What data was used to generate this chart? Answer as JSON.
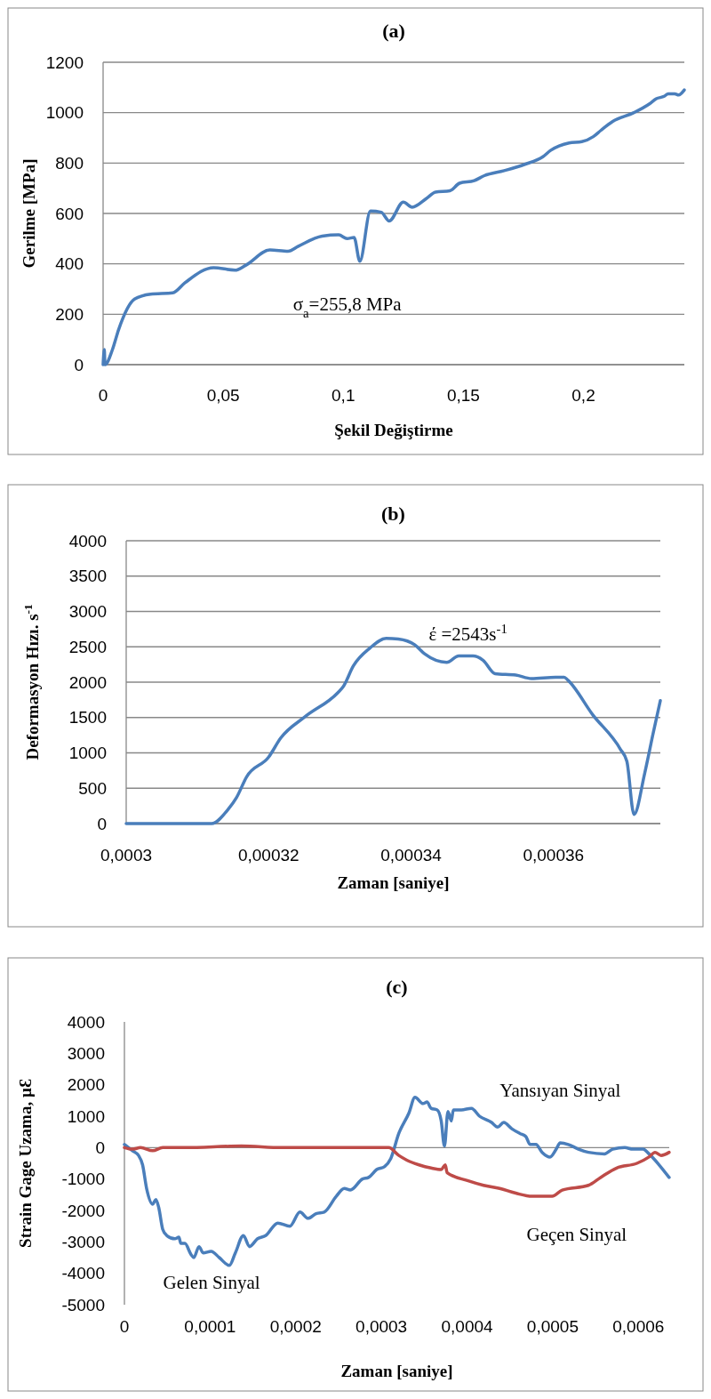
{
  "chart_data": [
    {
      "type": "line",
      "title": "(a)",
      "xlabel": "Şekil Değiştirme",
      "ylabel": "Gerilme  [MPa]",
      "xlim": [
        0,
        0.242
      ],
      "xticks": [
        0,
        {
          "value": 0.05,
          "label": "0,05"
        },
        {
          "value": 0.1,
          "label": "0,1"
        },
        {
          "value": 0.15,
          "label": "0,15"
        },
        {
          "value": 0.2,
          "label": "0,2"
        }
      ],
      "ylim": [
        0,
        1200
      ],
      "yticks": [
        0,
        200,
        400,
        600,
        800,
        1000,
        1200
      ],
      "grid": "y",
      "annotations": [
        "σ$_{a}$=255,8 MPa"
      ],
      "series": [
        {
          "color": "#4a7ebb",
          "x": [
            0,
            0.0005,
            0.0008,
            0.0039,
            0.0065,
            0.0131,
            0.0198,
            0.029,
            0.0341,
            0.046,
            0.0549,
            0.0595,
            0.0694,
            0.077,
            0.0813,
            0.0912,
            0.0981,
            0.1016,
            0.1045,
            0.1069,
            0.1113,
            0.1158,
            0.1191,
            0.125,
            0.1287,
            0.1347,
            0.1384,
            0.1444,
            0.1484,
            0.1545,
            0.1587,
            0.167,
            0.1756,
            0.1831,
            0.1863,
            0.194,
            0.1993,
            0.2041,
            0.2073,
            0.2122,
            0.221,
            0.2275,
            0.2303,
            0.2336,
            0.2353,
            0.238,
            0.2396,
            0.242
          ],
          "values": [
            0,
            60,
            0,
            60,
            140,
            260,
            280,
            285,
            325,
            385,
            375,
            395,
            455,
            450,
            470,
            510,
            515,
            500,
            505,
            410,
            610,
            605,
            570,
            645,
            625,
            660,
            685,
            690,
            720,
            730,
            750,
            770,
            795,
            825,
            850,
            880,
            885,
            905,
            930,
            965,
            1000,
            1035,
            1055,
            1065,
            1075,
            1075,
            1070,
            1090
          ]
        }
      ]
    },
    {
      "type": "line",
      "title": "(b)",
      "xlabel": "Zaman [saniye]",
      "ylabel": "Deformasyon Hızı.  s$^{-1}$",
      "xlim": [
        0.0003,
        0.000375
      ],
      "xticks": [
        {
          "value": 0.0003,
          "label": "0,0003"
        },
        {
          "value": 0.00032,
          "label": "0,00032"
        },
        {
          "value": 0.00034,
          "label": "0,00034"
        },
        {
          "value": 0.00036,
          "label": "0,00036"
        }
      ],
      "ylim": [
        0,
        4000
      ],
      "yticks": [
        0,
        500,
        1000,
        1500,
        2000,
        2500,
        3000,
        3500,
        4000
      ],
      "grid": "y",
      "annotations": [
        "έ =2543s$^{-1}$"
      ],
      "series": [
        {
          "color": "#4a7ebb",
          "x": [
            0.0003,
            0.0003102,
            0.000312,
            0.0003143,
            0.0003155,
            0.0003169,
            0.00032,
            0.0003217,
            0.0003251,
            0.0003297,
            0.0003305,
            0.0003319,
            0.0003342,
            0.0003365,
            0.0003382,
            0.0003405,
            0.0003419,
            0.000345,
            0.0003467,
            0.0003487,
            0.0003501,
            0.0003518,
            0.0003547,
            0.0003569,
            0.0003603,
            0.0003615,
            0.000362,
            0.0003655,
            0.0003694,
            0.0003703,
            0.0003713,
            0.0003728,
            0.000374,
            0.000375
          ],
          "values": [
            0,
            0,
            0,
            200,
            370,
            660,
            940,
            1210,
            1510,
            1850,
            1940,
            2230,
            2480,
            2620,
            2610,
            2530,
            2400,
            2280,
            2370,
            2370,
            2310,
            2120,
            2100,
            2050,
            2070,
            2070,
            2030,
            1540,
            1050,
            880,
            130,
            710,
            1280,
            1740
          ]
        }
      ]
    },
    {
      "type": "line",
      "title": "(c)",
      "xlabel": "Zaman [saniye]",
      "ylabel": "Strain Gage Uzama, µƐ",
      "xlim": [
        0,
        0.000636
      ],
      "xticks": [
        0,
        {
          "value": 0.0001,
          "label": "0,0001"
        },
        {
          "value": 0.0002,
          "label": "0,0002"
        },
        {
          "value": 0.0003,
          "label": "0,0003"
        },
        {
          "value": 0.0004,
          "label": "0,0004"
        },
        {
          "value": 0.0005,
          "label": "0,0005"
        },
        {
          "value": 0.0006,
          "label": "0,0006"
        }
      ],
      "ylim": [
        -5000,
        4000
      ],
      "yticks": [
        -5000,
        -4000,
        -3000,
        -2000,
        -1000,
        0,
        1000,
        2000,
        3000,
        4000
      ],
      "annotations": [
        "Gelen Sinyal",
        "Yansıyan Sinyal",
        "Geçen Sinyal"
      ],
      "series": [
        {
          "color": "#4a7ebb",
          "x": [
            0,
            9.4e-06,
            1.65e-05,
            2.12e-05,
            2.59e-05,
            3.3e-05,
            3.67e-05,
            4e-05,
            4.47e-05,
            4.95e-05,
            5.89e-05,
            6.36e-05,
            6.59e-05,
            7.06e-05,
            7.77e-05,
            8.1e-05,
            8.71e-05,
            9.19e-05,
            0.0001013,
            0.0001107,
            0.0001225,
            0.0001295,
            0.0001389,
            0.000146,
            0.0001554,
            0.0001649,
            0.000179,
            0.0001931,
            0.0002049,
            0.0002143,
            0.0002237,
            0.0002332,
            0.0002473,
            0.0002567,
            0.0002638,
            0.0002779,
            0.000285,
            0.0002944,
            0.0003038,
            0.0003109,
            0.0003203,
            0.0003321,
            0.0003392,
            0.0003486,
            0.0003533,
            0.000358,
            0.0003651,
            0.0003698,
            0.0003736,
            0.0003777,
            0.0003816,
            0.000384,
            0.0003933,
            0.0004051,
            0.0004145,
            0.0004286,
            0.0004358,
            0.0004428,
            0.0004522,
            0.0004617,
            0.0004687,
            0.0004734,
            0.0004804,
            0.0004876,
            0.0004969,
            0.0005041,
            0.0005087,
            0.0005182,
            0.00053,
            0.0005417,
            0.0005605,
            0.00057,
            0.0005841,
            0.0005935,
            0.0006053,
            0.0006124,
            0.0006242,
            0.0006359
          ],
          "values": [
            100,
            -100,
            -250,
            -550,
            -1300,
            -1800,
            -1650,
            -1900,
            -2600,
            -2800,
            -2900,
            -2850,
            -3050,
            -3050,
            -3400,
            -3500,
            -3150,
            -3350,
            -3300,
            -3500,
            -3750,
            -3350,
            -2800,
            -3150,
            -2900,
            -2800,
            -2400,
            -2500,
            -2050,
            -2250,
            -2100,
            -2050,
            -1550,
            -1300,
            -1350,
            -1000,
            -950,
            -700,
            -600,
            -350,
            450,
            1100,
            1600,
            1400,
            1450,
            1250,
            1200,
            850,
            50,
            1150,
            850,
            1200,
            1200,
            1250,
            1000,
            800,
            650,
            800,
            600,
            450,
            350,
            100,
            100,
            -150,
            -300,
            -50,
            150,
            100,
            -50,
            -150,
            -200,
            -50,
            0,
            -50,
            -50,
            -200,
            -550,
            -950
          ]
        },
        {
          "color": "#be4b48",
          "x": [
            0,
            9.4e-06,
            1.88e-05,
            3.3e-05,
            4.47e-05,
            7.06e-05,
            0.0001366,
            0.0001837,
            0.0002308,
            0.0002779,
            0.0003085,
            0.0003203,
            0.0003297,
            0.0003439,
            0.000358,
            0.0003698,
            0.0003745,
            0.0003768,
            0.0004004,
            0.0004192,
            0.0004381,
            0.0004569,
            0.0004758,
            0.0004993,
            0.0005111,
            0.0005417,
            0.0005559,
            0.0005746,
            0.0005983,
            0.0006124,
            0.0006194,
            0.0006265,
            0.0006359
          ],
          "values": [
            0,
            -50,
            0,
            -100,
            0,
            0,
            50,
            0,
            0,
            0,
            0,
            -250,
            -400,
            -550,
            -650,
            -700,
            -550,
            -800,
            -1050,
            -1200,
            -1300,
            -1450,
            -1550,
            -1550,
            -1350,
            -1200,
            -950,
            -650,
            -500,
            -300,
            -150,
            -250,
            -150
          ]
        }
      ]
    }
  ]
}
